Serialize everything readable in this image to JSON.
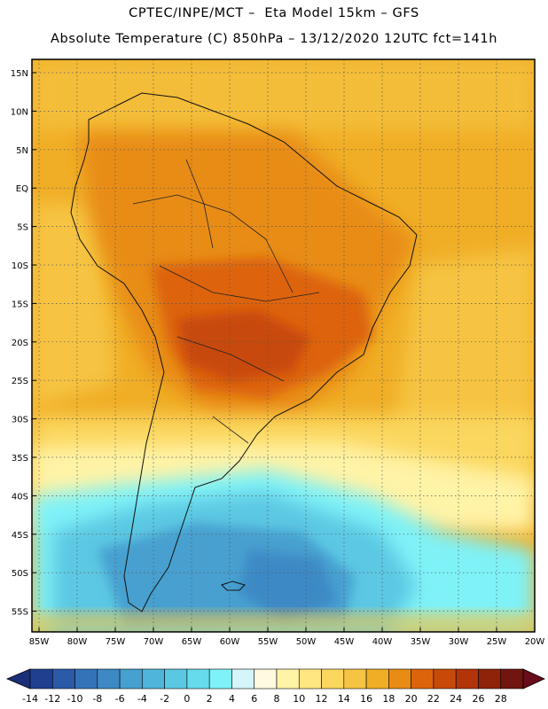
{
  "header": {
    "line1": "CPTEC/INPE/MCT –  Eta Model 15km – GFS",
    "line2": "Absolute Temperature (C) 850hPa – 13/12/2020 12UTC fct=141h"
  },
  "map": {
    "lat_labels": [
      "15N",
      "10N",
      "5N",
      "EQ",
      "5S",
      "10S",
      "15S",
      "20S",
      "25S",
      "30S",
      "35S",
      "40S",
      "45S",
      "50S",
      "55S"
    ],
    "lon_labels": [
      "85W",
      "80W",
      "75W",
      "70W",
      "65W",
      "60W",
      "55W",
      "50W",
      "45W",
      "40W",
      "35W",
      "30W",
      "25W",
      "20W"
    ],
    "grid": "dotted"
  },
  "colorbar": {
    "labels": [
      "-14",
      "-12",
      "-10",
      "-8",
      "-6",
      "-4",
      "-2",
      "0",
      "2",
      "4",
      "6",
      "8",
      "10",
      "12",
      "14",
      "16",
      "18",
      "20",
      "22",
      "24",
      "26",
      "28"
    ],
    "colors": [
      "#1f3f8f",
      "#2a5aa8",
      "#3573b9",
      "#3e89c5",
      "#46a0d0",
      "#4fb5da",
      "#5bc8e3",
      "#66dbeb",
      "#7ff2f7",
      "#d5f5fb",
      "#fff9e0",
      "#fff3a6",
      "#ffe680",
      "#fbd75e",
      "#f6c443",
      "#f0ae26",
      "#e88c16",
      "#dd640b",
      "#c84a09",
      "#b13508",
      "#8f2307",
      "#701510"
    ],
    "low_arrow_color": "#1b2f78",
    "high_arrow_color": "#6a0d1a"
  }
}
